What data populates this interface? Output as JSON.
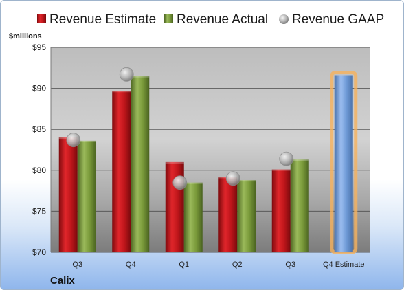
{
  "chart_data": {
    "type": "bar",
    "ylabel": "$millions",
    "ylim": [
      70,
      95
    ],
    "yticks": [
      70,
      75,
      80,
      85,
      90,
      95
    ],
    "ytick_labels": [
      "$70",
      "$75",
      "$80",
      "$85",
      "$90",
      "$95"
    ],
    "categories": [
      "Q3",
      "Q4",
      "Q1",
      "Q2",
      "Q3",
      "Q4 Estimate"
    ],
    "series": [
      {
        "name": "Revenue Estimate",
        "kind": "bar",
        "color": "#c0161b",
        "values": [
          84.0,
          89.7,
          81.0,
          79.2,
          80.1,
          null
        ]
      },
      {
        "name": "Revenue Actual",
        "kind": "bar",
        "color": "#7a9a3a",
        "values": [
          83.6,
          91.5,
          78.5,
          78.8,
          81.3,
          null
        ]
      },
      {
        "name": "Revenue GAAP",
        "kind": "marker",
        "color": "#a8a8a8",
        "values": [
          83.7,
          91.7,
          78.5,
          79.0,
          81.4,
          null
        ]
      }
    ],
    "estimate": {
      "category": "Q4 Estimate",
      "value": 91.6,
      "color": "#6e9ad6",
      "glow": "#f6b25c"
    },
    "grid": true,
    "legend_position": "top"
  },
  "company": "Calix"
}
